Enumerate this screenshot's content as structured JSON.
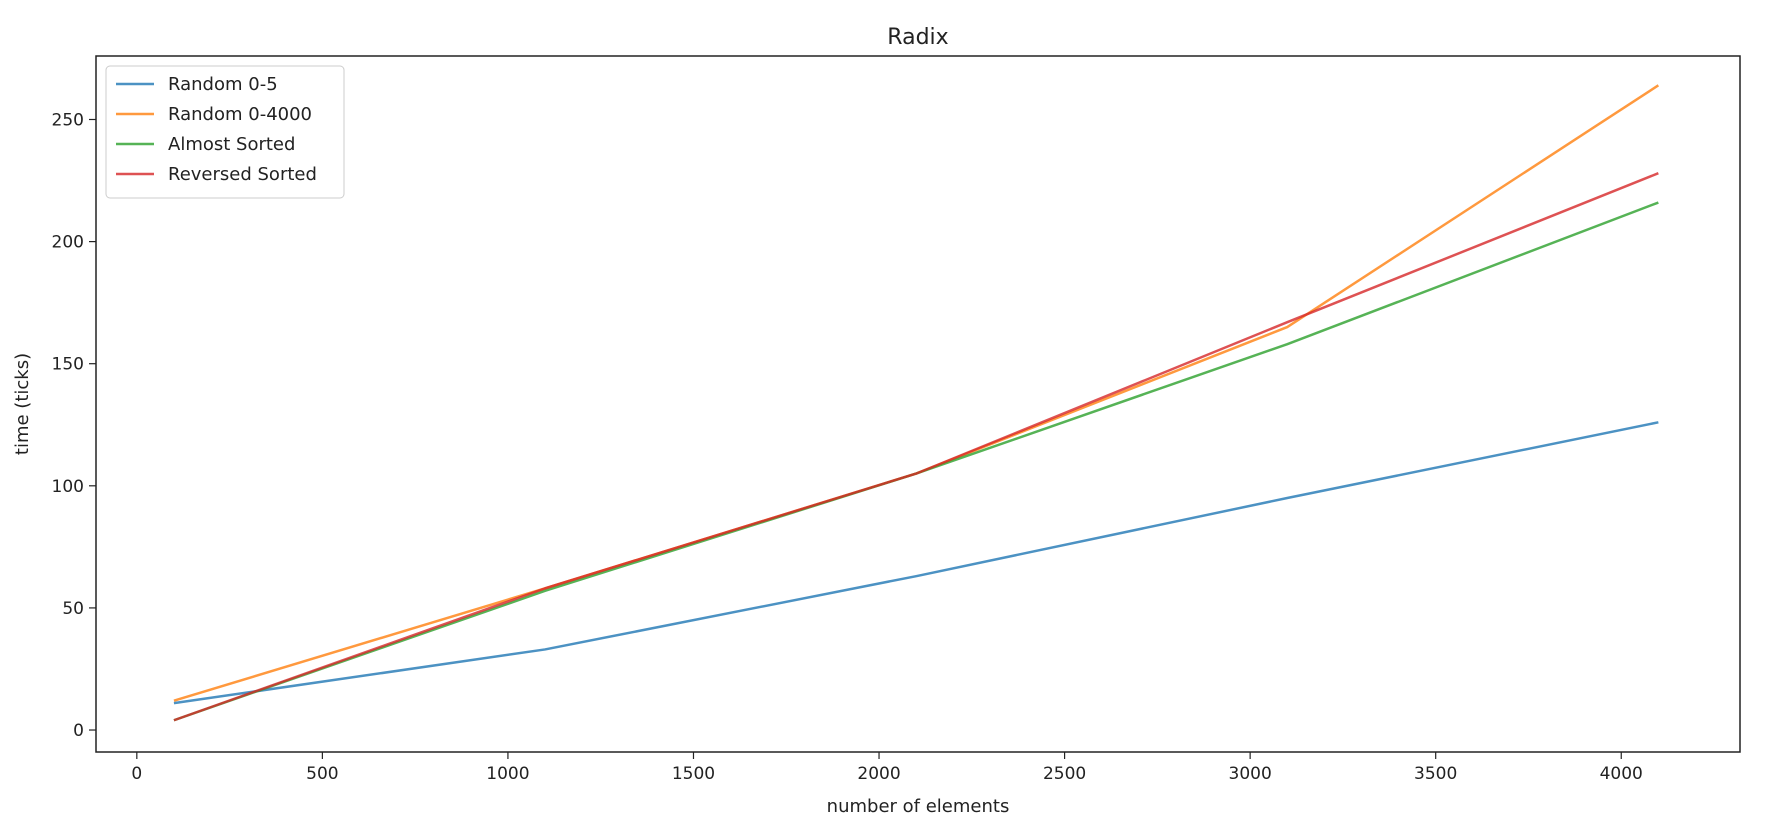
{
  "chart_data": {
    "type": "line",
    "title": "Radix",
    "xlabel": "number of elements",
    "ylabel": "time (ticks)",
    "xlim": [
      -110,
      4320
    ],
    "ylim": [
      -9,
      276
    ],
    "xticks": [
      0,
      500,
      1000,
      1500,
      2000,
      2500,
      3000,
      3500,
      4000
    ],
    "yticks": [
      0,
      50,
      100,
      150,
      200,
      250
    ],
    "grid": false,
    "legend_position": "top-left",
    "x": [
      100,
      1100,
      2100,
      3100,
      4100
    ],
    "series": [
      {
        "name": "Random 0-5",
        "color": "#1f77b4",
        "values": [
          11,
          33,
          63,
          95,
          126
        ]
      },
      {
        "name": "Random 0-4000",
        "color": "#ff7f0e",
        "values": [
          12,
          58,
          105,
          165,
          264
        ]
      },
      {
        "name": "Almost Sorted",
        "color": "#2ca02c",
        "values": [
          4,
          57,
          105,
          158,
          216
        ]
      },
      {
        "name": "Reversed Sorted",
        "color": "#d62728",
        "values": [
          4,
          58,
          105,
          167,
          228
        ]
      }
    ]
  }
}
